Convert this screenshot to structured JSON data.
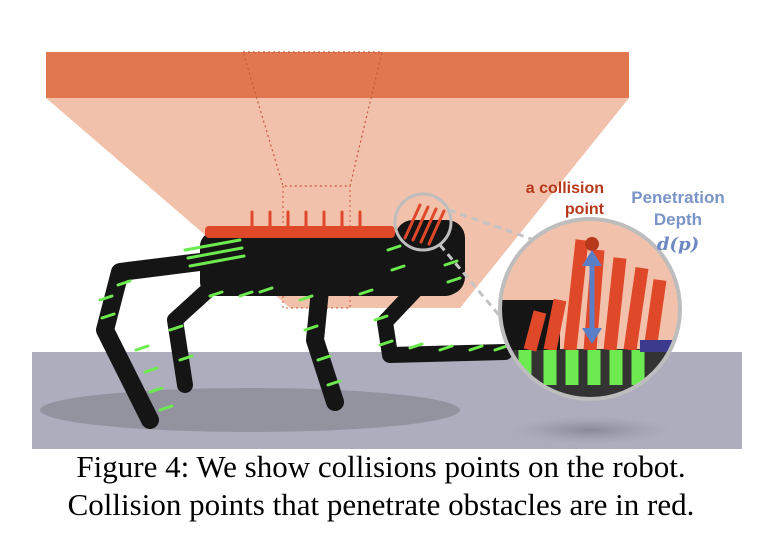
{
  "figure": {
    "label_collision_line1": "a collision",
    "label_collision_line2": "point",
    "label_depth_line1": "Penetration",
    "label_depth_line2": "Depth",
    "label_depth_symbol": "d(p)",
    "colors": {
      "obstacle": "#e0774e",
      "obstacle_light": "#f2c1ab",
      "ground": "#adadbd",
      "robot": "#151515",
      "collision_green": "#6dea4f",
      "collision_red": "#e0482a",
      "arrow": "#5b7fc7"
    }
  },
  "caption": {
    "line1": "Figure 4: We show collisions points on the robot.",
    "line2": "Collision points that penetrate obstacles are in red."
  }
}
